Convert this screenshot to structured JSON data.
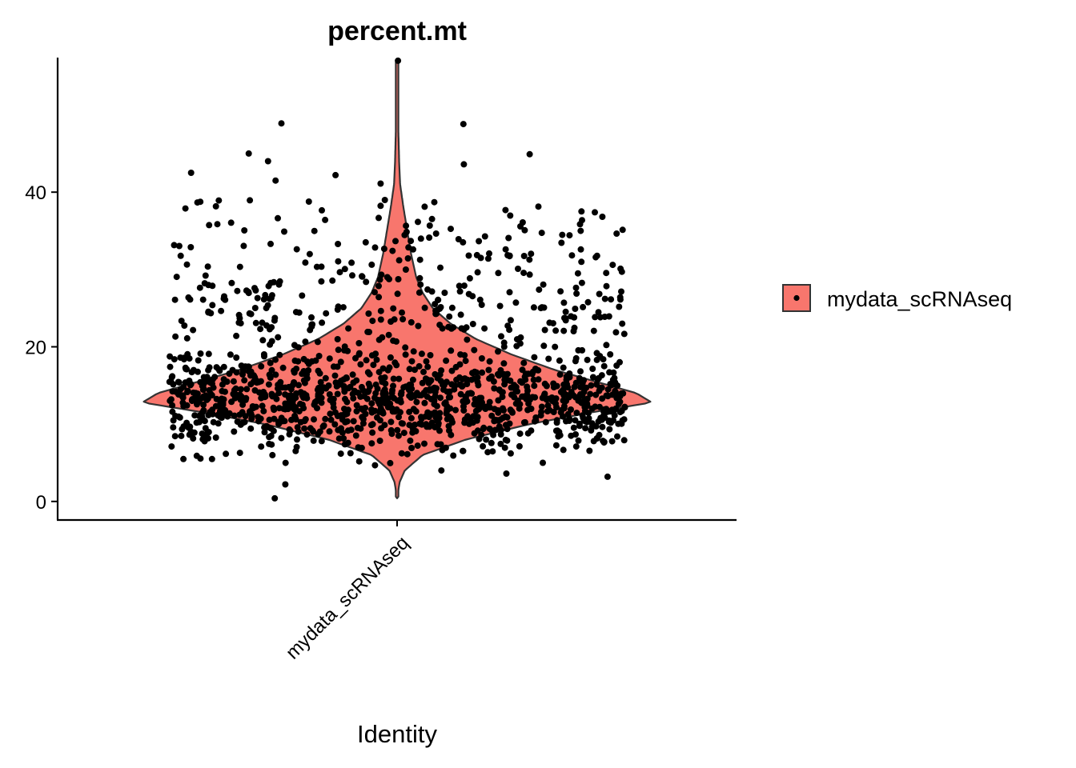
{
  "chart_data": {
    "type": "violin",
    "title": "percent.mt",
    "xlabel": "Identity",
    "ylabel": "",
    "categories": [
      "mydata_scRNAseq"
    ],
    "y_ticks": [
      0,
      20,
      40
    ],
    "y_tick_labels": [
      "0",
      "20",
      "40"
    ],
    "ylim": [
      -2.4,
      57.4
    ],
    "grid": false,
    "legend": {
      "placement": "right",
      "entries": [
        "mydata_scRNAseq"
      ]
    },
    "series": [
      {
        "name": "mydata_scRNAseq",
        "fill": "#F8766D",
        "stroke": "#333333",
        "point_color": "#000000",
        "distribution": {
          "min": 0.4,
          "max": 57.0,
          "median": 13.6,
          "mode": 12.8
        },
        "density_profile": [
          [
            0.4,
            0.0
          ],
          [
            2.5,
            0.01
          ],
          [
            4.0,
            0.03
          ],
          [
            6.0,
            0.1
          ],
          [
            8.0,
            0.27
          ],
          [
            10.0,
            0.52
          ],
          [
            11.5,
            0.76
          ],
          [
            12.8,
            1.0
          ],
          [
            14.0,
            0.94
          ],
          [
            15.5,
            0.78
          ],
          [
            17.0,
            0.62
          ],
          [
            19.0,
            0.45
          ],
          [
            21.0,
            0.31
          ],
          [
            23.0,
            0.21
          ],
          [
            25.0,
            0.14
          ],
          [
            27.0,
            0.1
          ],
          [
            29.0,
            0.075
          ],
          [
            32.0,
            0.055
          ],
          [
            35.0,
            0.04
          ],
          [
            38.0,
            0.025
          ],
          [
            41.0,
            0.012
          ],
          [
            44.0,
            0.008
          ],
          [
            48.0,
            0.005
          ],
          [
            52.0,
            0.003
          ],
          [
            57.0,
            0.0
          ]
        ],
        "outliers": [
          0.4,
          2.2,
          3.2,
          3.6,
          4.0,
          45.0,
          44.9,
          44.0,
          43.6,
          42.5,
          42.2,
          41.5,
          41.1,
          48.9,
          48.8,
          57.0
        ]
      }
    ]
  }
}
